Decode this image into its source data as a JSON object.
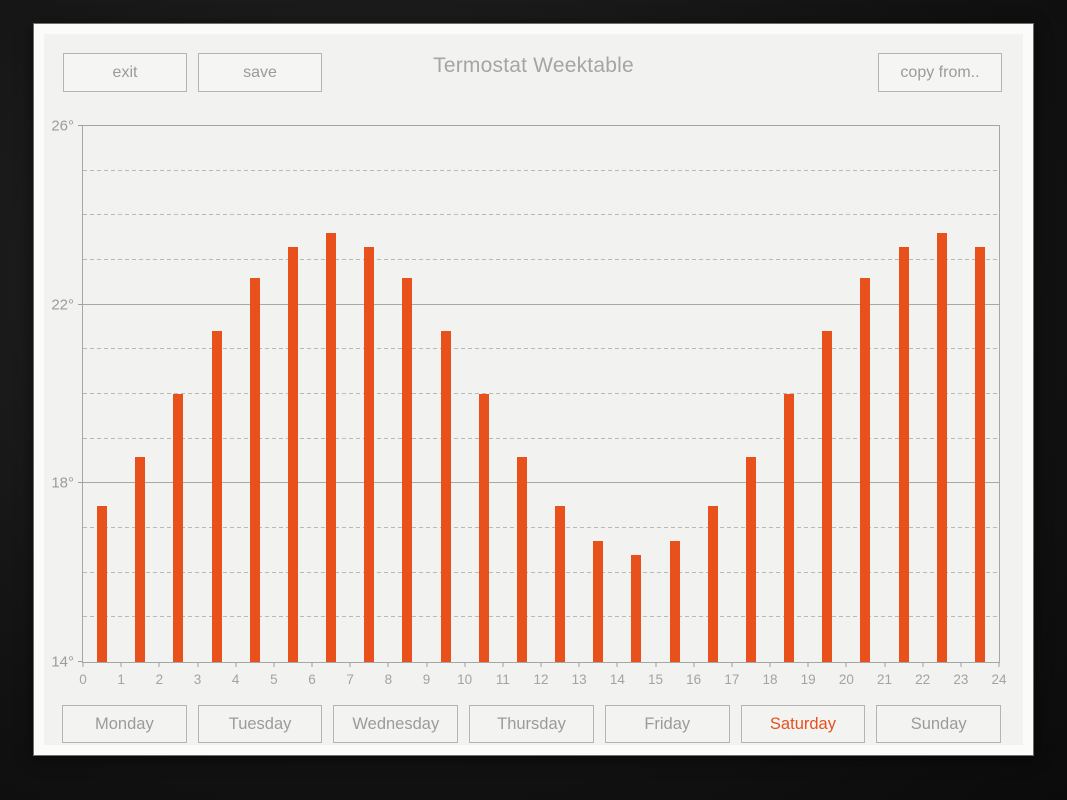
{
  "window": {
    "title": "Termostat Weektable",
    "buttons": {
      "exit": "exit",
      "save": "save",
      "copy_from": "copy from.."
    }
  },
  "chart_data": {
    "type": "bar",
    "title": "Termostat Weektable",
    "hours": [
      0,
      1,
      2,
      3,
      4,
      5,
      6,
      7,
      8,
      9,
      10,
      11,
      12,
      13,
      14,
      15,
      16,
      17,
      18,
      19,
      20,
      21,
      22,
      23
    ],
    "values": [
      17.5,
      18.6,
      20.0,
      21.4,
      22.6,
      23.3,
      23.6,
      23.3,
      22.6,
      21.4,
      20.0,
      18.6,
      17.5,
      16.7,
      16.4,
      16.7,
      17.5,
      18.6,
      20.0,
      21.4,
      22.6,
      23.3,
      23.6,
      23.3
    ],
    "xlabel": "",
    "ylabel": "",
    "ylim": [
      14,
      26
    ],
    "xlim": [
      0,
      24
    ],
    "y_major_lines": [
      14,
      18,
      22,
      26
    ],
    "y_tick_labels": [
      "26°",
      "22°",
      "18°",
      "14°"
    ],
    "y_tick_values": [
      26,
      22,
      18,
      14
    ],
    "y_minor_lines": [
      15,
      16,
      17,
      19,
      20,
      21,
      23,
      24,
      25
    ],
    "x_tick_labels": [
      "0",
      "1",
      "2",
      "3",
      "4",
      "5",
      "6",
      "7",
      "8",
      "9",
      "10",
      "11",
      "12",
      "13",
      "14",
      "15",
      "16",
      "17",
      "18",
      "19",
      "20",
      "21",
      "22",
      "23",
      "24"
    ],
    "grid": true,
    "legend": false,
    "bar_color": "#e8501c"
  },
  "tabs": {
    "days": [
      {
        "label": "Monday",
        "active": false
      },
      {
        "label": "Tuesday",
        "active": false
      },
      {
        "label": "Wednesday",
        "active": false
      },
      {
        "label": "Thursday",
        "active": false
      },
      {
        "label": "Friday",
        "active": false
      },
      {
        "label": "Saturday",
        "active": true
      },
      {
        "label": "Sunday",
        "active": false
      }
    ],
    "active_color": "#e8501c"
  },
  "colors": {
    "accent": "#e8501c",
    "panel_bg": "#f2f2f0",
    "window_bg": "#fbfbfa",
    "outer_bg": "#141414",
    "grid_major": "#a8a8a8",
    "grid_minor": "#b9b9b8",
    "text_muted": "#9b9b9b"
  }
}
